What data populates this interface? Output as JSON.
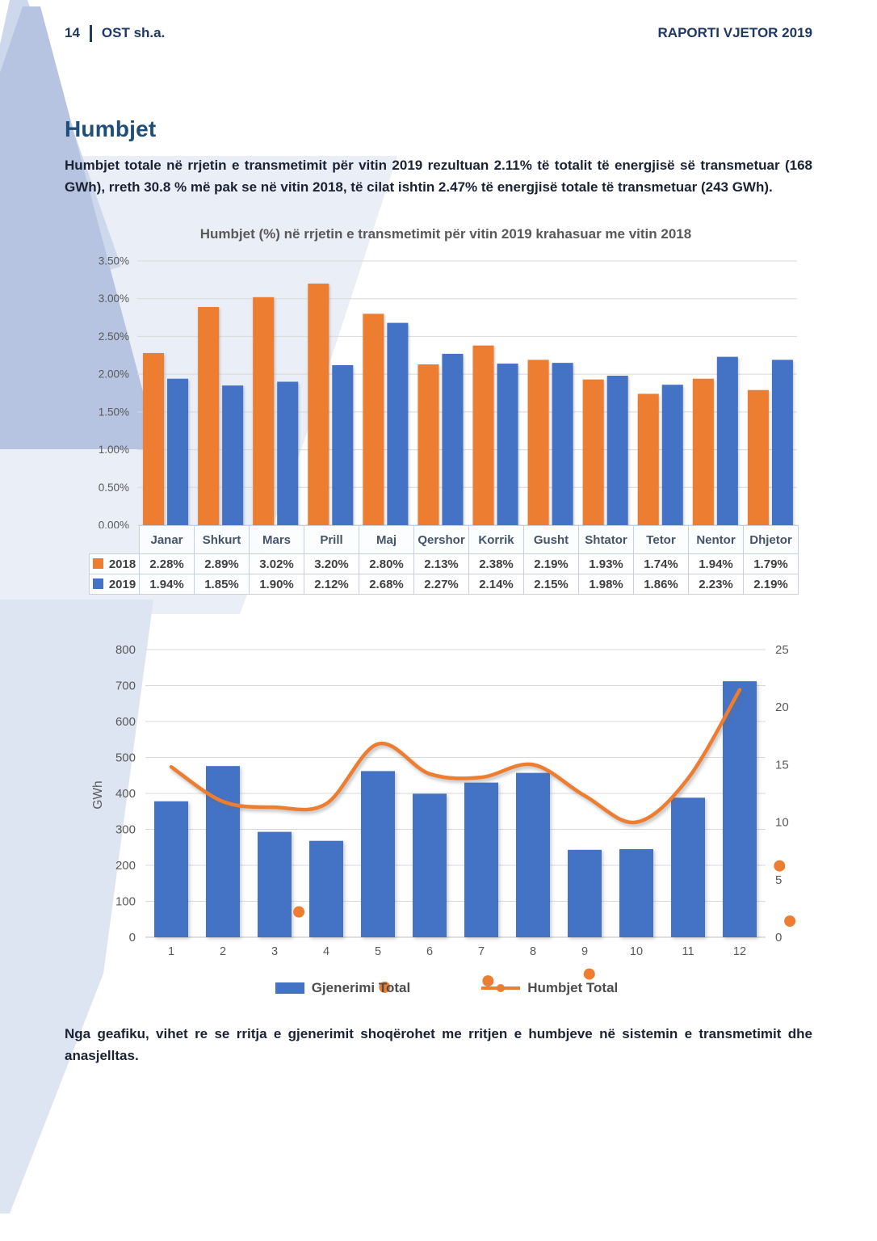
{
  "header": {
    "page_number": "14",
    "company": "OST sh.a.",
    "report_title": "RAPORTI VJETOR 2019"
  },
  "section": {
    "title": "Humbjet",
    "intro": "Humbjet totale në rrjetin e transmetimit për vitin 2019 rezultuan 2.11% të totalit të energjisë së transmetuar (168 GWh), rreth 30.8 % më pak se në vitin 2018, të cilat ishtin 2.47% të energjisë totale të transmetuar (243 GWh).",
    "closing": "Nga geafiku, vihet re se rritja e gjenerimit shoqërohet me rritjen e humbjeve në sistemin e transmetimit dhe anasjelltas."
  },
  "colors": {
    "accent_navy": "#1F3864",
    "title_blue": "#1F4E79",
    "orange": "#ED7D31",
    "blue": "#4472C4",
    "axis_gray": "#595959",
    "gridline": "#d9d9d9"
  },
  "chart_data": [
    {
      "type": "bar",
      "title": "Humbjet (%) në rrjetin e transmetimit për vitin 2019 krahasuar me vitin 2018",
      "categories": [
        "Janar",
        "Shkurt",
        "Mars",
        "Prill",
        "Maj",
        "Qershor",
        "Korrik",
        "Gusht",
        "Shtator",
        "Tetor",
        "Nentor",
        "Dhjetor"
      ],
      "series": [
        {
          "name": "2018",
          "color": "#ED7D31",
          "values": [
            2.28,
            2.89,
            3.02,
            3.2,
            2.8,
            2.13,
            2.38,
            2.19,
            1.93,
            1.74,
            1.94,
            1.79
          ]
        },
        {
          "name": "2019",
          "color": "#4472C4",
          "values": [
            1.94,
            1.85,
            1.9,
            2.12,
            2.68,
            2.27,
            2.14,
            2.15,
            1.98,
            1.86,
            2.23,
            2.19
          ]
        }
      ],
      "ylim": [
        0,
        3.5
      ],
      "ytick_step": 0.5,
      "ytick_suffix": "%",
      "grid": true,
      "legend_position": "table-left",
      "value_format": "percent2"
    },
    {
      "type": "combo-bar-line",
      "categories": [
        "1",
        "2",
        "3",
        "4",
        "5",
        "6",
        "7",
        "8",
        "9",
        "10",
        "11",
        "12"
      ],
      "bar_series": {
        "name": "Gjenerimi Total",
        "color": "#4472C4",
        "values": [
          378,
          476,
          293,
          268,
          462,
          399,
          430,
          457,
          243,
          245,
          388,
          712
        ]
      },
      "line_series": {
        "name": "Humbjet Total",
        "color": "#ED7D31",
        "axis": "right",
        "values": [
          14.8,
          11.8,
          11.3,
          11.6,
          16.8,
          14.2,
          13.9,
          15.0,
          12.3,
          10.0,
          13.8,
          21.5
        ]
      },
      "ylabel_left": "GWh",
      "ylim_left": [
        0,
        800
      ],
      "ytick_step_left": 100,
      "ylim_right": [
        0,
        25
      ],
      "ytick_step_right": 5,
      "grid": true,
      "legend_position": "bottom",
      "stray_markers_right_axis": [
        {
          "x": 3.47,
          "y": 2.2
        },
        {
          "x": 12.77,
          "y": 6.2
        },
        {
          "x": 12.97,
          "y": 1.4
        },
        {
          "x": 5.13,
          "y": -4.35
        },
        {
          "x": 7.13,
          "y": -3.8
        },
        {
          "x": 9.09,
          "y": -3.2
        }
      ]
    }
  ]
}
